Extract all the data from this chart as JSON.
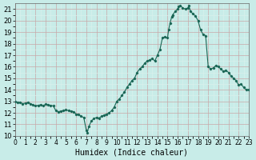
{
  "xlabel": "Humidex (Indice chaleur)",
  "ylabel": "",
  "xlim": [
    0,
    23
  ],
  "ylim": [
    10,
    21.5
  ],
  "yticks": [
    10,
    11,
    12,
    13,
    14,
    15,
    16,
    17,
    18,
    19,
    20,
    21
  ],
  "xticks": [
    0,
    1,
    2,
    3,
    4,
    5,
    6,
    7,
    8,
    9,
    10,
    11,
    12,
    13,
    14,
    15,
    16,
    17,
    18,
    19,
    20,
    21,
    22,
    23
  ],
  "bg_color": "#c8ece8",
  "grid_color_major": "#b0d8d4",
  "grid_color_minor": "#d8f0ec",
  "line_color": "#1a6655",
  "marker_color": "#1a6655",
  "x": [
    0,
    0.25,
    0.5,
    0.75,
    1.0,
    1.25,
    1.5,
    1.75,
    2.0,
    2.25,
    2.5,
    2.75,
    3.0,
    3.25,
    3.5,
    3.75,
    4.0,
    4.25,
    4.5,
    4.75,
    5.0,
    5.25,
    5.5,
    5.75,
    6.0,
    6.25,
    6.5,
    6.75,
    7.0,
    7.1,
    7.25,
    7.5,
    7.75,
    8.0,
    8.25,
    8.5,
    8.75,
    9.0,
    9.25,
    9.5,
    9.75,
    10.0,
    10.25,
    10.5,
    10.75,
    11.0,
    11.25,
    11.5,
    11.75,
    12.0,
    12.25,
    12.5,
    12.75,
    13.0,
    13.25,
    13.5,
    13.75,
    14.0,
    14.25,
    14.5,
    14.75,
    15.0,
    15.1,
    15.25,
    15.4,
    15.5,
    15.75,
    16.0,
    16.1,
    16.25,
    16.5,
    16.75,
    17.0,
    17.1,
    17.25,
    17.5,
    17.75,
    18.0,
    18.25,
    18.5,
    18.75,
    19.0,
    19.25,
    19.5,
    19.75,
    20.0,
    20.25,
    20.5,
    20.75,
    21.0,
    21.25,
    21.5,
    21.75,
    22.0,
    22.25,
    22.5,
    22.75,
    23.0
  ],
  "y": [
    13.0,
    12.9,
    12.9,
    12.8,
    12.85,
    12.9,
    12.8,
    12.7,
    12.6,
    12.65,
    12.7,
    12.6,
    12.75,
    12.7,
    12.65,
    12.6,
    12.2,
    12.1,
    12.15,
    12.2,
    12.25,
    12.2,
    12.15,
    12.1,
    11.9,
    11.85,
    11.7,
    11.6,
    10.5,
    10.3,
    10.8,
    11.3,
    11.5,
    11.6,
    11.55,
    11.7,
    11.8,
    11.9,
    12.0,
    12.2,
    12.5,
    13.0,
    13.2,
    13.5,
    13.8,
    14.2,
    14.5,
    14.8,
    15.0,
    15.5,
    15.8,
    16.0,
    16.3,
    16.5,
    16.6,
    16.7,
    16.5,
    17.0,
    17.5,
    18.5,
    18.6,
    18.5,
    19.2,
    19.8,
    20.3,
    20.5,
    20.8,
    21.0,
    21.2,
    21.3,
    21.1,
    21.0,
    21.1,
    21.3,
    20.8,
    20.6,
    20.4,
    20.0,
    19.2,
    18.8,
    18.7,
    16.0,
    15.8,
    15.9,
    16.1,
    16.0,
    15.8,
    15.6,
    15.7,
    15.5,
    15.2,
    15.0,
    14.8,
    14.4,
    14.5,
    14.2,
    14.0,
    14.0
  ]
}
